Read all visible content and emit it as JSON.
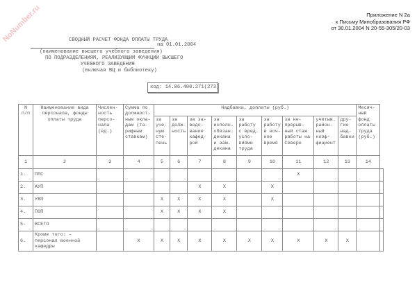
{
  "watermark": "NoNumber.ru",
  "reference": [
    "Приложение N 2а",
    "к Письму Минобразования РФ",
    "от 30.01.2004 N 20-55-305/20-03"
  ],
  "title": "СВОДНЫЙ РАСЧЕТ ФОНДА ОПЛАТЫ ТРУДА",
  "date_label": "на 01.01.2004",
  "institution_caption": "(наименование высшего учебного заведения)",
  "subtitle_1": "ПО ПОДРАЗДЕЛЕНИЯМ, РЕАЛИЗУЮЩИМ ФУНКЦИИ ВЫСШЕГО",
  "subtitle_2": "УЧЕБНОГО ЗАВЕДЕНИЯ",
  "subtitle_3": "(включая ВЦ и библиотеку)",
  "code": "код: 14.06.400.271(273)",
  "table": {
    "headers": {
      "num": "N п/п",
      "name": "Наименование вида персонала, фонды оплаты труда",
      "count": "Числен- ность персо- нала (ед.)",
      "salary": "Сумма по должност- ным окла- дам (та- рифным ставкам)",
      "group": "Надбавки, доплаты (руб.)",
      "sub": [
        "за уче- ную сте- пень",
        "за долж- ность",
        "за за- ведо- вание кафед- рой",
        "за исполн. обязан. декана и зам. декана",
        "за работу с вред. усло- виями труда",
        "за работу в ноч- ное время",
        "за не- прерыв- ный стаж работы на Севере",
        "учитыв. район- ный коэф- фициент",
        "дру- гие над- бавки"
      ],
      "monthly": "Месяч- ный фонд оплаты труда (руб.)"
    },
    "column_numbers": [
      "1",
      "2",
      "3",
      "4",
      "5",
      "6",
      "7",
      "8",
      "9",
      "10",
      "11",
      "12",
      "13",
      "14"
    ],
    "rows": [
      {
        "num": "1.",
        "name": "ППС",
        "cells": [
          "",
          "",
          "",
          "",
          "",
          "",
          "",
          "",
          "X",
          "",
          "",
          "",
          ""
        ]
      },
      {
        "num": "2.",
        "name": "АУП",
        "cells": [
          "",
          "",
          "",
          "",
          "X",
          "X",
          "",
          "X",
          "",
          "",
          "",
          "",
          ""
        ]
      },
      {
        "num": "3.",
        "name": "УВП",
        "cells": [
          "",
          "",
          "X",
          "X",
          "X",
          "X",
          "",
          "X",
          "",
          "",
          "",
          "",
          ""
        ]
      },
      {
        "num": "4.",
        "name": "ПОП",
        "cells": [
          "",
          "",
          "X",
          "X",
          "X",
          "X",
          "",
          "",
          "",
          "",
          "",
          "",
          ""
        ]
      },
      {
        "num": "5.",
        "name": "ВСЕГО",
        "cells": [
          "",
          "",
          "",
          "",
          "",
          "",
          "",
          "",
          "",
          "",
          "",
          "",
          ""
        ]
      },
      {
        "num": "6.",
        "name": "Кроме того: - персонал военной кафедры",
        "cells": [
          "",
          "X",
          "X",
          "X",
          "X",
          "X",
          "X",
          "X",
          "X",
          "X",
          "X",
          "",
          ""
        ]
      }
    ]
  }
}
